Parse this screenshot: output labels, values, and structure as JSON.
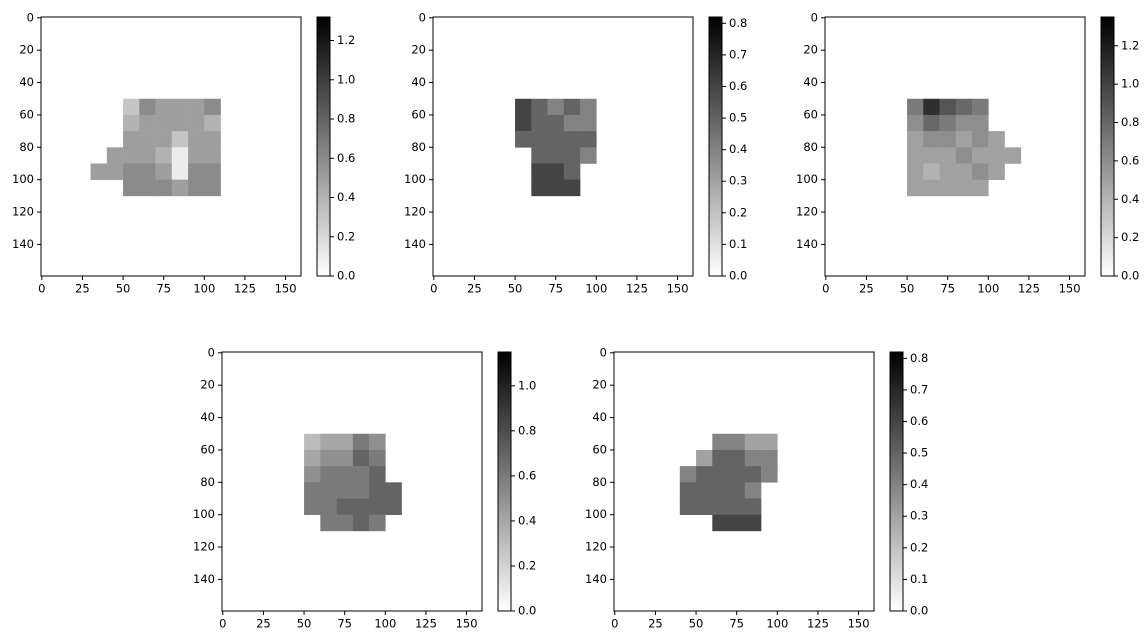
{
  "chart_data": [
    {
      "type": "heatmap",
      "cmap": "gray_r",
      "x": [
        35,
        45,
        55,
        65,
        75,
        85,
        95,
        105,
        115,
        125
      ],
      "y": [
        55,
        65,
        75,
        85,
        95,
        105
      ],
      "values": [
        [
          null,
          null,
          0.3,
          0.6,
          0.5,
          0.5,
          0.5,
          0.6,
          null,
          null
        ],
        [
          null,
          null,
          0.4,
          0.5,
          0.5,
          0.5,
          0.5,
          0.4,
          null,
          null
        ],
        [
          null,
          null,
          0.5,
          0.5,
          0.5,
          0.3,
          0.5,
          0.5,
          null,
          null
        ],
        [
          null,
          0.5,
          0.5,
          0.5,
          0.4,
          0.1,
          0.5,
          0.5,
          null,
          null
        ],
        [
          0.5,
          0.5,
          0.6,
          0.6,
          0.5,
          0.1,
          0.6,
          0.6,
          null,
          null
        ],
        [
          null,
          null,
          0.6,
          0.6,
          0.6,
          0.5,
          0.6,
          0.6,
          null,
          null
        ]
      ],
      "xlim": [
        -0.5,
        159.5
      ],
      "ylim": [
        159.5,
        -0.5
      ],
      "xticks": [
        0,
        25,
        50,
        75,
        100,
        125,
        150
      ],
      "yticks": [
        0,
        20,
        40,
        60,
        80,
        100,
        120,
        140
      ],
      "clim": [
        0,
        1.32
      ],
      "cticks": [
        {
          "value": 0,
          "label": "0.0"
        },
        0.2,
        0.4,
        0.6,
        0.8,
        {
          "value": 1,
          "label": "1.0"
        },
        1.2
      ]
    },
    {
      "type": "heatmap",
      "cmap": "gray_r",
      "x": [
        35,
        45,
        55,
        65,
        75,
        85,
        95,
        105,
        115,
        125
      ],
      "y": [
        55,
        65,
        75,
        85,
        95,
        105
      ],
      "values": [
        [
          null,
          null,
          0.6,
          0.5,
          0.4,
          0.5,
          0.4,
          null,
          null,
          null
        ],
        [
          null,
          null,
          0.6,
          0.5,
          0.5,
          0.4,
          0.4,
          null,
          null,
          null
        ],
        [
          null,
          null,
          0.5,
          0.5,
          0.5,
          0.5,
          0.5,
          null,
          null,
          null
        ],
        [
          null,
          null,
          null,
          0.5,
          0.5,
          0.5,
          0.4,
          null,
          null,
          null
        ],
        [
          null,
          null,
          null,
          0.6,
          0.6,
          0.5,
          null,
          null,
          null,
          null
        ],
        [
          null,
          null,
          null,
          0.6,
          0.6,
          0.6,
          null,
          null,
          null,
          null
        ]
      ],
      "xlim": [
        -0.5,
        159.5
      ],
      "ylim": [
        159.5,
        -0.5
      ],
      "xticks": [
        0,
        25,
        50,
        75,
        100,
        125,
        150
      ],
      "yticks": [
        0,
        20,
        40,
        60,
        80,
        100,
        120,
        140
      ],
      "clim": [
        0,
        0.82
      ],
      "cticks": [
        {
          "value": 0,
          "label": "0.0"
        },
        0.1,
        0.2,
        0.3,
        0.4,
        0.5,
        0.6,
        0.7,
        0.8
      ]
    },
    {
      "type": "heatmap",
      "cmap": "gray_r",
      "x": [
        35,
        45,
        55,
        65,
        75,
        85,
        95,
        105,
        115,
        125
      ],
      "y": [
        55,
        65,
        75,
        85,
        95,
        105
      ],
      "values": [
        [
          null,
          null,
          0.7,
          1.1,
          0.9,
          0.8,
          0.7,
          null,
          null,
          null
        ],
        [
          null,
          null,
          0.6,
          0.8,
          0.7,
          0.6,
          0.6,
          null,
          null,
          null
        ],
        [
          null,
          null,
          0.5,
          0.6,
          0.6,
          0.5,
          0.6,
          0.5,
          null,
          null
        ],
        [
          null,
          null,
          0.5,
          0.5,
          0.5,
          0.6,
          0.5,
          0.5,
          0.5,
          null
        ],
        [
          null,
          null,
          0.5,
          0.4,
          0.5,
          0.5,
          0.6,
          0.5,
          null,
          null
        ],
        [
          null,
          null,
          0.5,
          0.5,
          0.5,
          0.5,
          0.5,
          null,
          null,
          null
        ]
      ],
      "xlim": [
        -0.5,
        159.5
      ],
      "ylim": [
        159.5,
        -0.5
      ],
      "xticks": [
        0,
        25,
        50,
        75,
        100,
        125,
        150
      ],
      "yticks": [
        0,
        20,
        40,
        60,
        80,
        100,
        120,
        140
      ],
      "clim": [
        0,
        1.35
      ],
      "cticks": [
        {
          "value": 0,
          "label": "0.0"
        },
        0.2,
        0.4,
        0.6,
        0.8,
        {
          "value": 1,
          "label": "1.0"
        },
        1.2
      ]
    },
    {
      "type": "heatmap",
      "cmap": "gray_r",
      "x": [
        35,
        45,
        55,
        65,
        75,
        85,
        95,
        105,
        115,
        125
      ],
      "y": [
        55,
        65,
        75,
        85,
        95,
        105
      ],
      "values": [
        [
          null,
          null,
          0.3,
          0.4,
          0.4,
          0.6,
          0.5,
          null,
          null,
          null
        ],
        [
          null,
          null,
          0.4,
          0.5,
          0.5,
          0.7,
          0.6,
          null,
          null,
          null
        ],
        [
          null,
          null,
          0.5,
          0.6,
          0.6,
          0.6,
          0.7,
          null,
          null,
          null
        ],
        [
          null,
          null,
          0.6,
          0.6,
          0.6,
          0.6,
          0.7,
          0.7,
          null,
          null
        ],
        [
          null,
          null,
          0.6,
          0.6,
          0.7,
          0.7,
          0.7,
          0.7,
          null,
          null
        ],
        [
          null,
          null,
          null,
          0.6,
          0.6,
          0.7,
          0.6,
          null,
          null,
          null
        ]
      ],
      "xlim": [
        -0.5,
        159.5
      ],
      "ylim": [
        159.5,
        -0.5
      ],
      "xticks": [
        0,
        25,
        50,
        75,
        100,
        125,
        150
      ],
      "yticks": [
        0,
        20,
        40,
        60,
        80,
        100,
        120,
        140
      ],
      "clim": [
        0,
        1.15
      ],
      "cticks": [
        {
          "value": 0,
          "label": "0.0"
        },
        0.2,
        0.4,
        0.6,
        0.8,
        {
          "value": 1,
          "label": "1.0"
        }
      ]
    },
    {
      "type": "heatmap",
      "cmap": "gray_r",
      "x": [
        35,
        45,
        55,
        65,
        75,
        85,
        95,
        105,
        115,
        125
      ],
      "y": [
        55,
        65,
        75,
        85,
        95,
        105
      ],
      "values": [
        [
          null,
          null,
          null,
          0.4,
          0.4,
          0.3,
          0.3,
          null,
          null,
          null
        ],
        [
          null,
          null,
          0.3,
          0.5,
          0.5,
          0.4,
          0.4,
          null,
          null,
          null
        ],
        [
          null,
          0.4,
          0.5,
          0.5,
          0.5,
          0.5,
          0.4,
          null,
          null,
          null
        ],
        [
          null,
          0.5,
          0.5,
          0.5,
          0.5,
          0.4,
          null,
          null,
          null,
          null
        ],
        [
          null,
          0.5,
          0.5,
          0.5,
          0.5,
          0.5,
          null,
          null,
          null,
          null
        ],
        [
          null,
          null,
          null,
          0.6,
          0.6,
          0.6,
          null,
          null,
          null,
          null
        ]
      ],
      "xlim": [
        -0.5,
        159.5
      ],
      "ylim": [
        159.5,
        -0.5
      ],
      "xticks": [
        0,
        25,
        50,
        75,
        100,
        125,
        150
      ],
      "yticks": [
        0,
        20,
        40,
        60,
        80,
        100,
        120,
        140
      ],
      "clim": [
        0,
        0.82
      ],
      "cticks": [
        {
          "value": 0,
          "label": "0.0"
        },
        0.1,
        0.2,
        0.3,
        0.4,
        0.5,
        0.6,
        0.7,
        0.8
      ]
    }
  ]
}
